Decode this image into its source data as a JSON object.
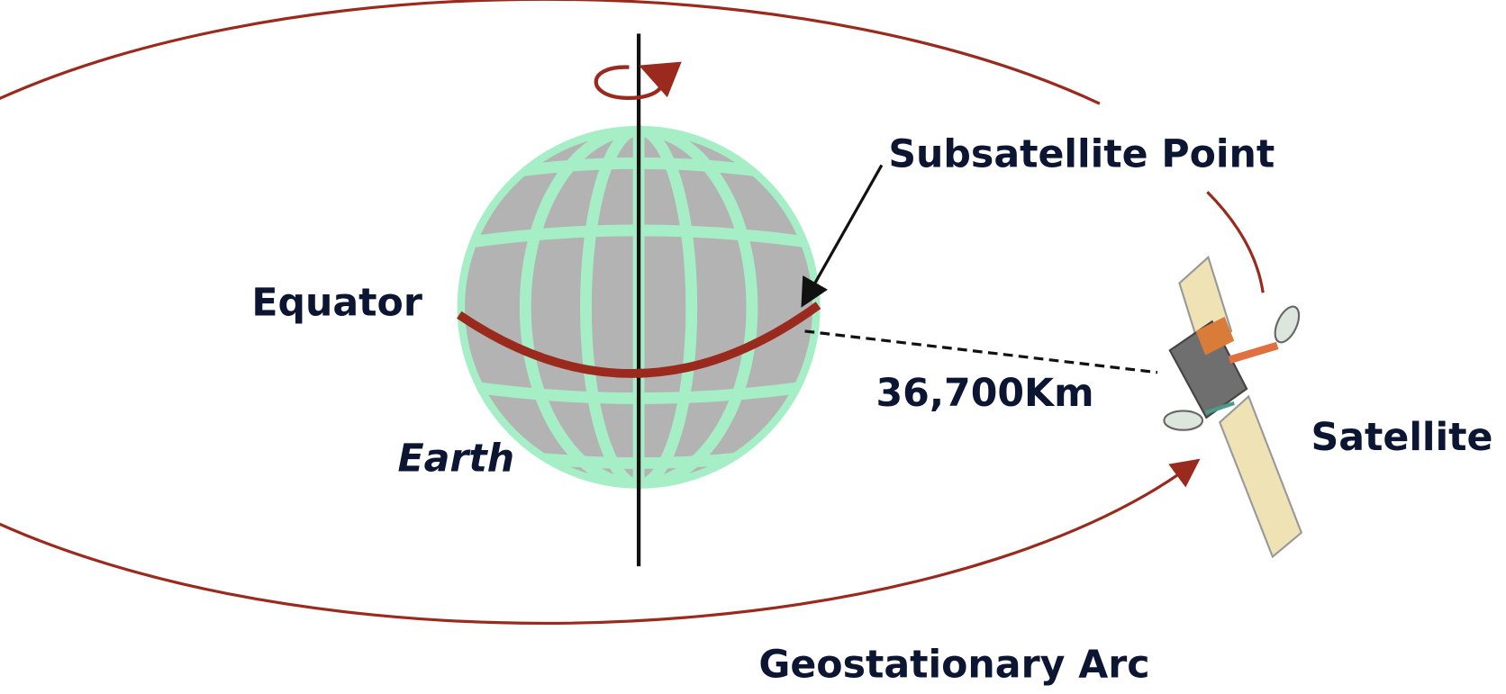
{
  "labels": {
    "subsatellite_point": "Subsatellite Point",
    "equator": "Equator",
    "distance": "36,700Km",
    "earth": "Earth",
    "satellite": "Satellite",
    "arc": "Geostationary Arc"
  }
}
